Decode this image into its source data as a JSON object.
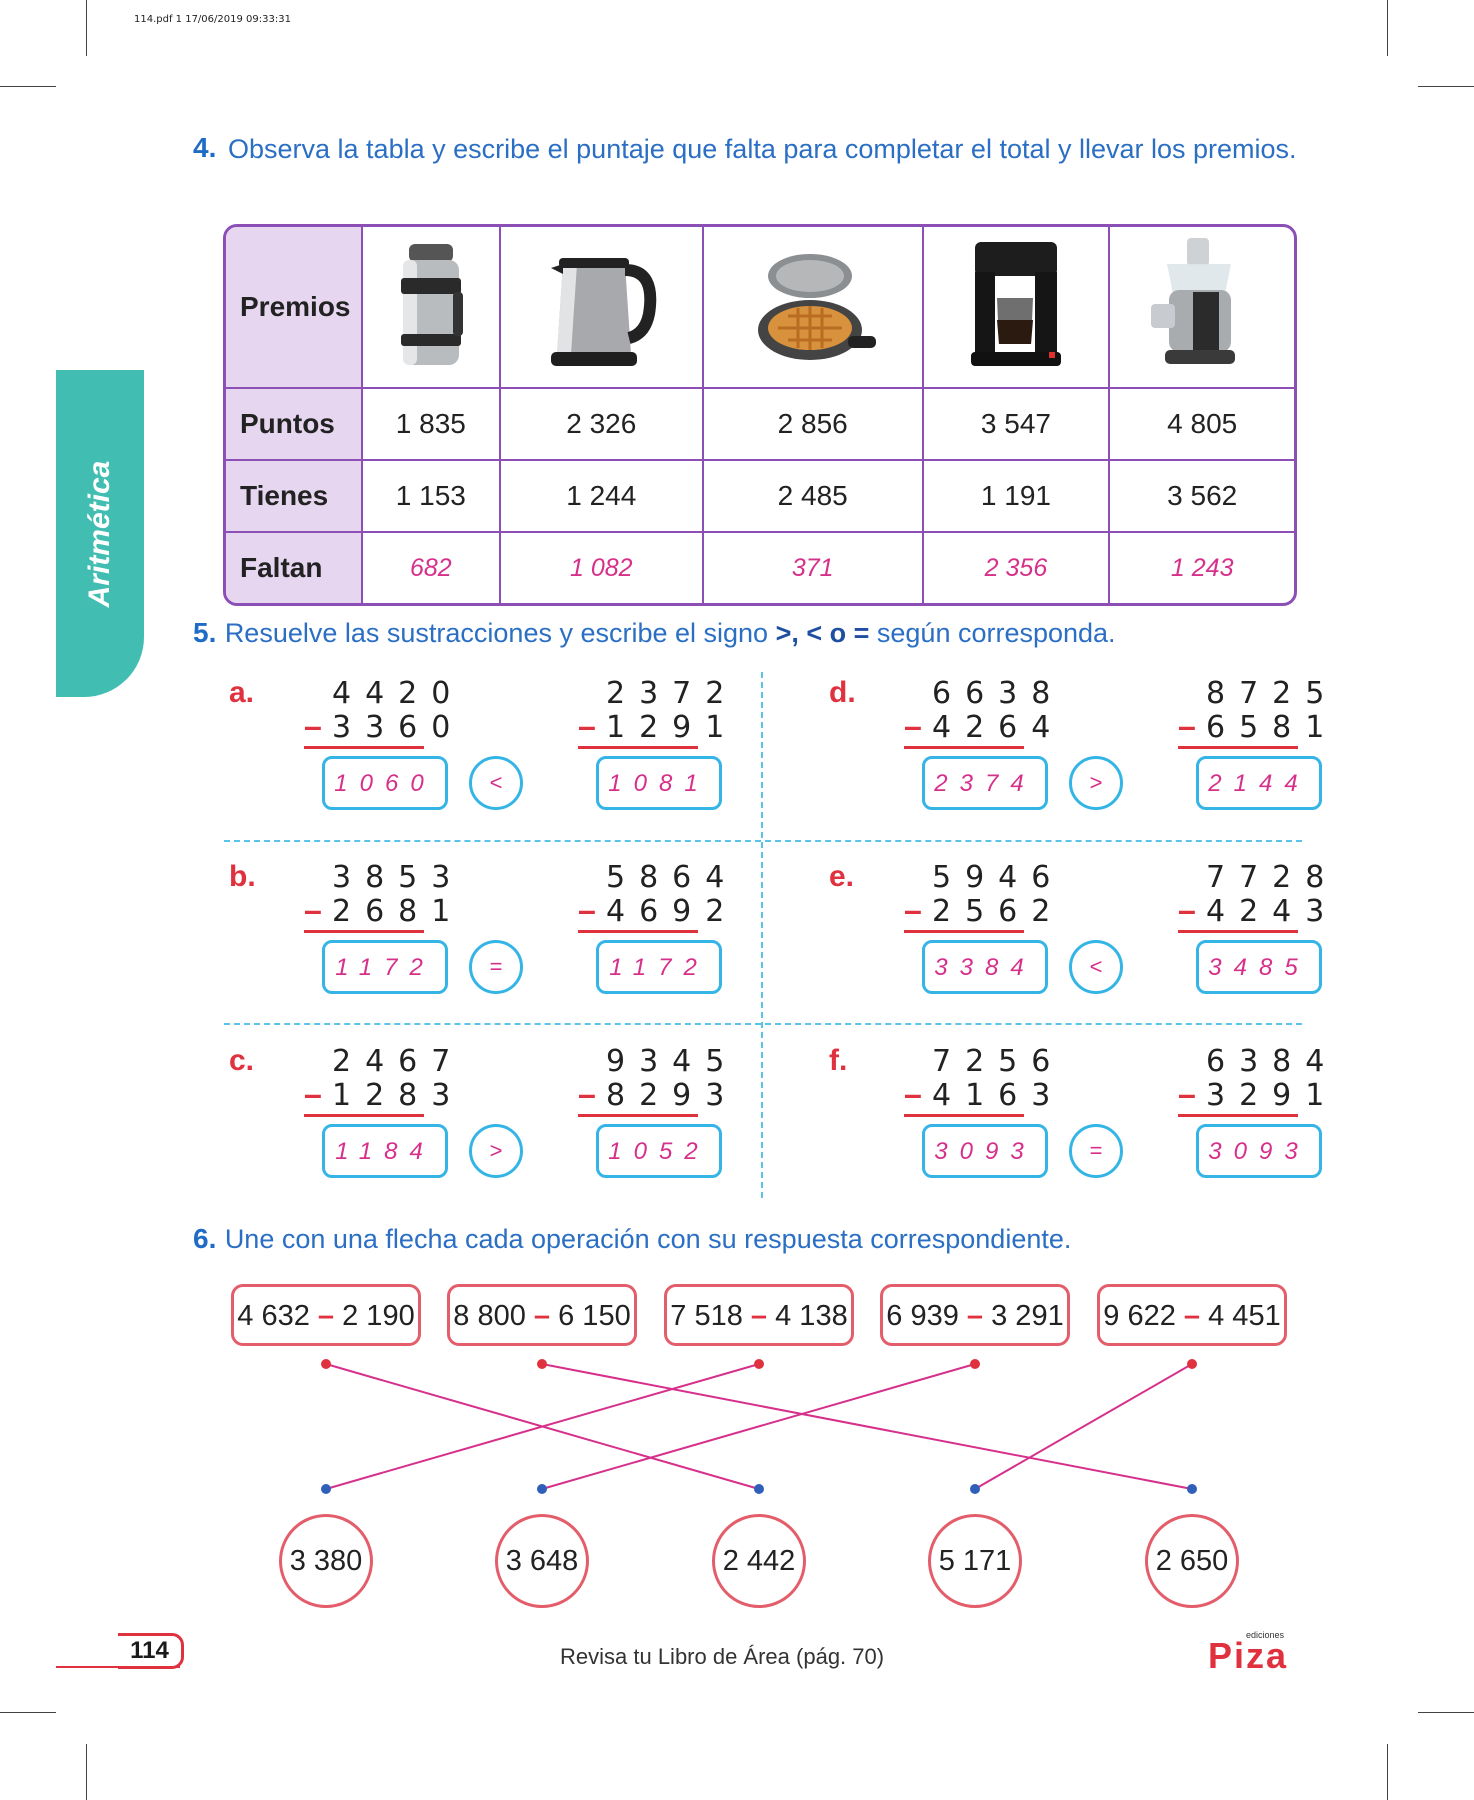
{
  "pdf_header": "114.pdf  1  17/06/2019  09:33:31",
  "side_tab": "Aritmética",
  "q4": {
    "number": "4.",
    "text": "Observa la tabla y escribe el puntaje que falta para completar el total y llevar los premios.",
    "row_labels": [
      "Premios",
      "Puntos",
      "Tienes",
      "Faltan"
    ],
    "prizes": [
      "thermos-icon",
      "kettle-icon",
      "waffle-maker-icon",
      "coffee-maker-icon",
      "juicer-icon"
    ],
    "puntos": [
      "1 835",
      "2 326",
      "2 856",
      "3 547",
      "4 805"
    ],
    "tienes": [
      "1 153",
      "1 244",
      "2 485",
      "1 191",
      "3 562"
    ],
    "faltan": [
      "682",
      "1 082",
      "371",
      "2 356",
      "1 243"
    ]
  },
  "q5": {
    "number": "5.",
    "text_pre": "Resuelve las sustracciones y escribe el signo ",
    "text_signs": ">, < o =",
    "text_post": " según corresponda.",
    "items": [
      {
        "label": "a.",
        "left": {
          "top": "4420",
          "bottom": "3360",
          "answer": "1060"
        },
        "sign": "<",
        "right": {
          "top": "2372",
          "bottom": "1291",
          "answer": "1081"
        }
      },
      {
        "label": "b.",
        "left": {
          "top": "3853",
          "bottom": "2681",
          "answer": "1172"
        },
        "sign": "=",
        "right": {
          "top": "5864",
          "bottom": "4692",
          "answer": "1172"
        }
      },
      {
        "label": "c.",
        "left": {
          "top": "2467",
          "bottom": "1283",
          "answer": "1184"
        },
        "sign": ">",
        "right": {
          "top": "9345",
          "bottom": "8293",
          "answer": "1052"
        }
      },
      {
        "label": "d.",
        "left": {
          "top": "6638",
          "bottom": "4264",
          "answer": "2374"
        },
        "sign": ">",
        "right": {
          "top": "8725",
          "bottom": "6581",
          "answer": "2144"
        }
      },
      {
        "label": "e.",
        "left": {
          "top": "5946",
          "bottom": "2562",
          "answer": "3384"
        },
        "sign": "<",
        "right": {
          "top": "7728",
          "bottom": "4243",
          "answer": "3485"
        }
      },
      {
        "label": "f.",
        "left": {
          "top": "7256",
          "bottom": "4163",
          "answer": "3093"
        },
        "sign": "=",
        "right": {
          "top": "6384",
          "bottom": "3291",
          "answer": "3093"
        }
      }
    ]
  },
  "q6": {
    "number": "6.",
    "text": "Une con una flecha cada operación con su respuesta correspondiente.",
    "operations": [
      {
        "a": "4 632",
        "b": "2 190"
      },
      {
        "a": "8 800",
        "b": "6 150"
      },
      {
        "a": "7 518",
        "b": "4 138"
      },
      {
        "a": "6 939",
        "b": "3 291"
      },
      {
        "a": "9 622",
        "b": "4 451"
      }
    ],
    "results": [
      "3 380",
      "3 648",
      "2 442",
      "5 171",
      "2 650"
    ],
    "connections": [
      [
        0,
        2
      ],
      [
        1,
        4
      ],
      [
        2,
        0
      ],
      [
        3,
        1
      ],
      [
        4,
        3
      ]
    ],
    "line_color": "#d6308b"
  },
  "footer": {
    "page": "114",
    "text": "Revisa tu Libro de Área (pág. 70)",
    "logo_main": "Piza",
    "logo_small": "ediciones"
  },
  "colors": {
    "accent_blue": "#2b6fc4",
    "red": "#e0313f",
    "purple": "#8b4fb6",
    "teal": "#42bdb1",
    "answer_pink": "#d6308b",
    "box_cyan": "#35b5e5"
  }
}
